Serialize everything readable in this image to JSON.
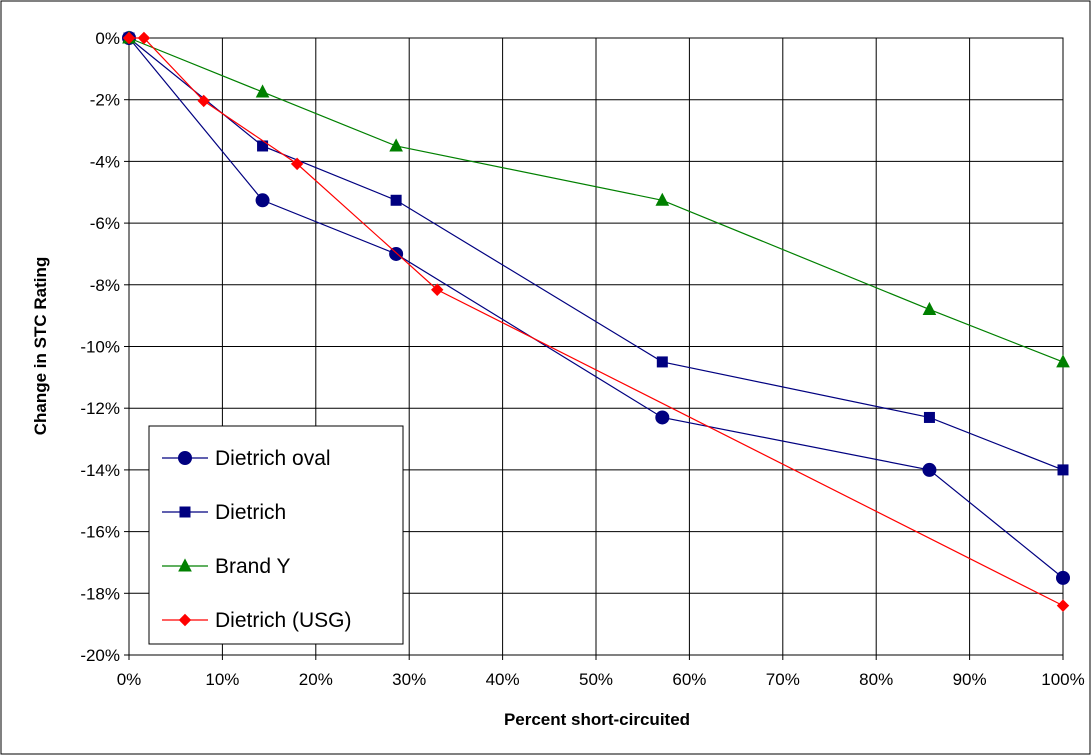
{
  "chart_data": {
    "type": "line",
    "title": "",
    "xlabel": "Percent short-circuited",
    "ylabel": "Change in STC Rating",
    "xlim": [
      0,
      100
    ],
    "ylim": [
      -20,
      0
    ],
    "x_tick_labels": [
      "0%",
      "10%",
      "20%",
      "30%",
      "40%",
      "50%",
      "60%",
      "70%",
      "80%",
      "90%",
      "100%"
    ],
    "y_tick_labels": [
      "0%",
      "-2%",
      "-4%",
      "-6%",
      "-8%",
      "-10%",
      "-12%",
      "-14%",
      "-16%",
      "-18%",
      "-20%"
    ],
    "grid": true,
    "legend_position": "bottom-left",
    "series": [
      {
        "name": "Dietrich oval",
        "color": "#000080",
        "marker": "circle",
        "x": [
          0,
          14.3,
          28.6,
          57.1,
          85.7,
          100
        ],
        "y": [
          0,
          -5.26,
          -7.0,
          -12.3,
          -14.0,
          -17.5
        ]
      },
      {
        "name": "Dietrich",
        "color": "#000080",
        "marker": "square",
        "x": [
          0,
          14.3,
          28.6,
          57.1,
          85.7,
          100
        ],
        "y": [
          0,
          -3.5,
          -5.26,
          -10.5,
          -12.3,
          -14.0
        ]
      },
      {
        "name": "Brand Y",
        "color": "#008000",
        "marker": "triangle",
        "x": [
          0,
          14.3,
          28.6,
          57.1,
          85.7,
          100
        ],
        "y": [
          0,
          -1.75,
          -3.5,
          -5.26,
          -8.8,
          -10.5
        ]
      },
      {
        "name": "Dietrich (USG)",
        "color": "#ff0000",
        "marker": "diamond",
        "x": [
          0,
          1.6,
          8.0,
          18.0,
          33.0,
          100
        ],
        "y": [
          0,
          0,
          -2.04,
          -4.08,
          -8.16,
          -18.4
        ]
      }
    ]
  }
}
